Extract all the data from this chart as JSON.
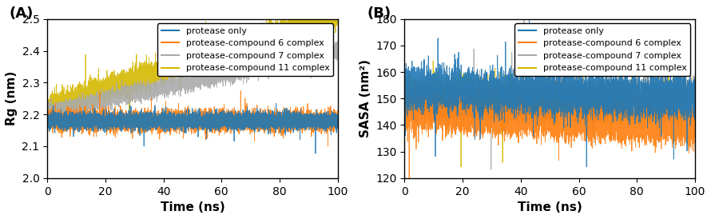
{
  "n_points": 10000,
  "time_end": 100,
  "panel_A": {
    "title": "(A)",
    "ylabel": "Rg (nm)",
    "xlabel": "Time (ns)",
    "ylim": [
      2.0,
      2.5
    ],
    "yticks": [
      2.0,
      2.1,
      2.2,
      2.3,
      2.4,
      2.5
    ],
    "xlim": [
      0,
      100
    ],
    "xticks": [
      0,
      20,
      40,
      60,
      80,
      100
    ],
    "series": {
      "protease_only": {
        "color": "#1f77b4",
        "mean": 2.18,
        "std": 0.012,
        "trend": 0.0
      },
      "compound6": {
        "color": "#ff7f0e",
        "mean": 2.18,
        "std": 0.015,
        "trend": 0.0
      },
      "compound7": {
        "color": "#aaaaaa",
        "mean": 2.205,
        "std": 0.012,
        "trend": 0.002
      },
      "compound11": {
        "color": "#d4b800",
        "mean": 2.22,
        "std": 0.018,
        "trend": 0.003
      }
    }
  },
  "panel_B": {
    "title": "(B)",
    "ylabel": "SASA (nm²)",
    "xlabel": "Time (ns)",
    "ylim": [
      120,
      180
    ],
    "yticks": [
      120,
      130,
      140,
      150,
      160,
      170,
      180
    ],
    "xlim": [
      0,
      100
    ],
    "xticks": [
      0,
      20,
      40,
      60,
      80,
      100
    ],
    "series": {
      "protease_only": {
        "color": "#1f77b4",
        "mean": 154.0,
        "std": 3.5,
        "trend": -0.04
      },
      "compound6": {
        "color": "#ff7f0e",
        "mean": 145.0,
        "std": 3.0,
        "trend": -0.06
      },
      "compound7": {
        "color": "#aaaaaa",
        "mean": 149.0,
        "std": 3.5,
        "trend": 0.02
      },
      "compound11": {
        "color": "#d4b800",
        "mean": 151.0,
        "std": 3.0,
        "trend": -0.02
      }
    }
  },
  "legend_labels": [
    "protease only",
    "protease-compound 6 complex",
    "protease-compound 7 complex",
    "protease-compound 11 complex"
  ],
  "legend_colors": [
    "#1f77b4",
    "#ff7f0e",
    "#aaaaaa",
    "#d4b800"
  ],
  "title_fontsize": 13,
  "label_fontsize": 11,
  "tick_fontsize": 10,
  "legend_fontsize": 8,
  "linewidth": 0.6,
  "background_color": "#ffffff",
  "border_color": "#000000"
}
